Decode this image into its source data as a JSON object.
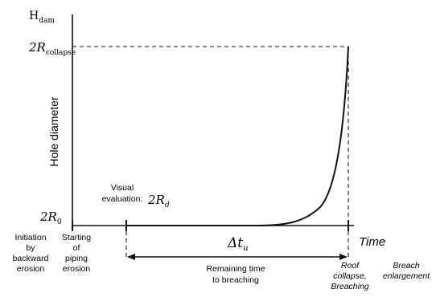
{
  "y_axis": {
    "top_label_main": "H",
    "top_label_sub": "dam",
    "title": "Hole diameter",
    "upper_label_main": "2R",
    "upper_label_sub": "collapse",
    "lower_label_main": "2R",
    "lower_label_sub": "0"
  },
  "x_axis": {
    "title": "Time"
  },
  "visual_evaluation": {
    "label_line1": "Visual",
    "label_line2": "evaluation:",
    "symbol_main": "2R",
    "symbol_sub": "d"
  },
  "delta": {
    "symbol_main": "Δt",
    "symbol_sub": "u",
    "caption_line1": "Remaining time",
    "caption_line2": "to breaching"
  },
  "phases": {
    "initiation": [
      "Initiation",
      "by",
      "backward",
      "erosion"
    ],
    "starting": [
      "Starting",
      "of",
      "piping",
      "erosion"
    ],
    "roof": [
      "Roof",
      "collapse,",
      "Breaching"
    ],
    "breach": [
      "Breach",
      "enlargement"
    ]
  }
}
